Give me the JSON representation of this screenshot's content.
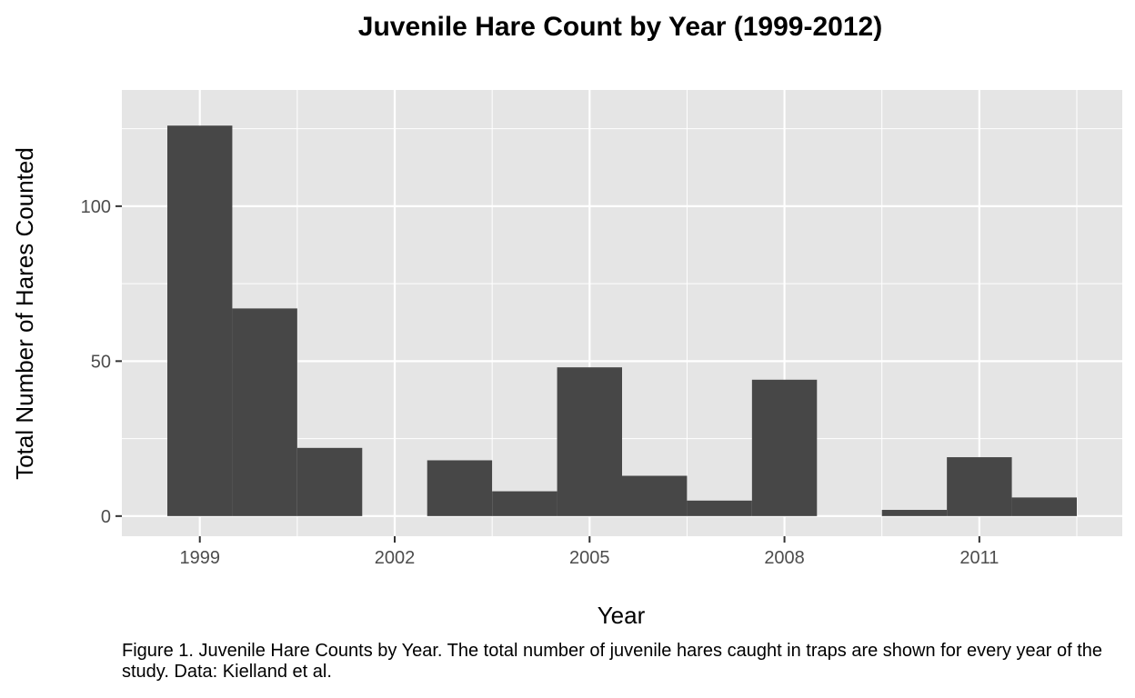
{
  "chart_data": {
    "type": "bar",
    "title": "Juvenile Hare Count by Year (1999-2012)",
    "xlabel": "Year",
    "ylabel": "Total Number of Hares Counted",
    "x": [
      1999,
      2000,
      2001,
      2002,
      2003,
      2004,
      2005,
      2006,
      2007,
      2008,
      2009,
      2010,
      2011,
      2012
    ],
    "values": [
      126,
      67,
      22,
      0,
      18,
      8,
      48,
      13,
      5,
      44,
      0,
      2,
      19,
      6
    ],
    "xlim": [
      1997.8,
      2013.2
    ],
    "ylim": [
      -6.5,
      137.5
    ],
    "x_ticks": [
      1999,
      2002,
      2005,
      2008,
      2011
    ],
    "y_ticks": [
      0,
      50,
      100
    ],
    "grid": true,
    "bar_color": "#474747",
    "panel_color": "#e5e5e5",
    "caption": "Figure 1. Juvenile Hare Counts by Year. The total number of juvenile hares caught in traps are shown for every year of the study. Data: Kielland et al."
  }
}
